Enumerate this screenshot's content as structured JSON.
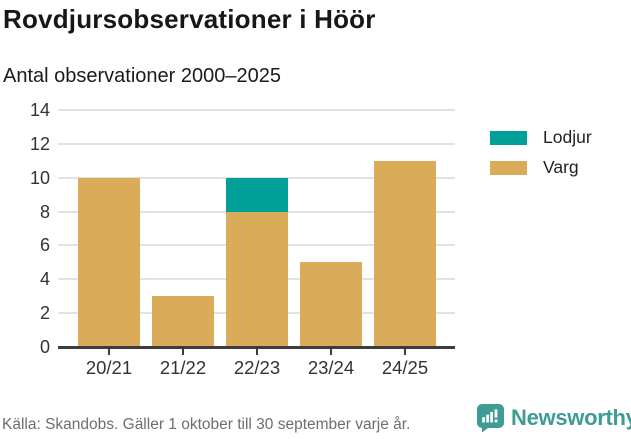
{
  "header": {
    "title": "Rovdjursobservationer i Höör",
    "subtitle": "Antal observationer 2000–2025"
  },
  "chart_data": {
    "type": "bar",
    "stacked": true,
    "title": "Rovdjursobservationer i Höör",
    "subtitle": "Antal observationer 2000–2025",
    "categories": [
      "20/21",
      "21/22",
      "22/23",
      "23/24",
      "24/25"
    ],
    "series": [
      {
        "name": "Varg",
        "color": "#daac5a",
        "values": [
          10,
          3,
          8,
          5,
          11
        ]
      },
      {
        "name": "Lodjur",
        "color": "#00a098",
        "values": [
          0,
          0,
          2,
          0,
          0
        ]
      }
    ],
    "totals": [
      10,
      3,
      10,
      5,
      11
    ],
    "xlabel": "",
    "ylabel": "",
    "ylim": [
      0,
      14
    ],
    "yticks": [
      0,
      2,
      4,
      6,
      8,
      10,
      12,
      14
    ],
    "grid": true,
    "legend_position": "right"
  },
  "legend": {
    "items": [
      {
        "label": "Lodjur",
        "color": "#00a098"
      },
      {
        "label": "Varg",
        "color": "#daac5a"
      }
    ]
  },
  "footer": {
    "source": "Källa: Skandobs. Gäller 1 oktober till 30 september varje år.",
    "brand": "Newsworthy"
  },
  "colors": {
    "axis": "#3d3d3d",
    "grid": "#e2e2e2",
    "title_text": "#171717",
    "tick_text": "#333333",
    "source_text": "#6e6e6e",
    "brand": "#3f9c95"
  }
}
